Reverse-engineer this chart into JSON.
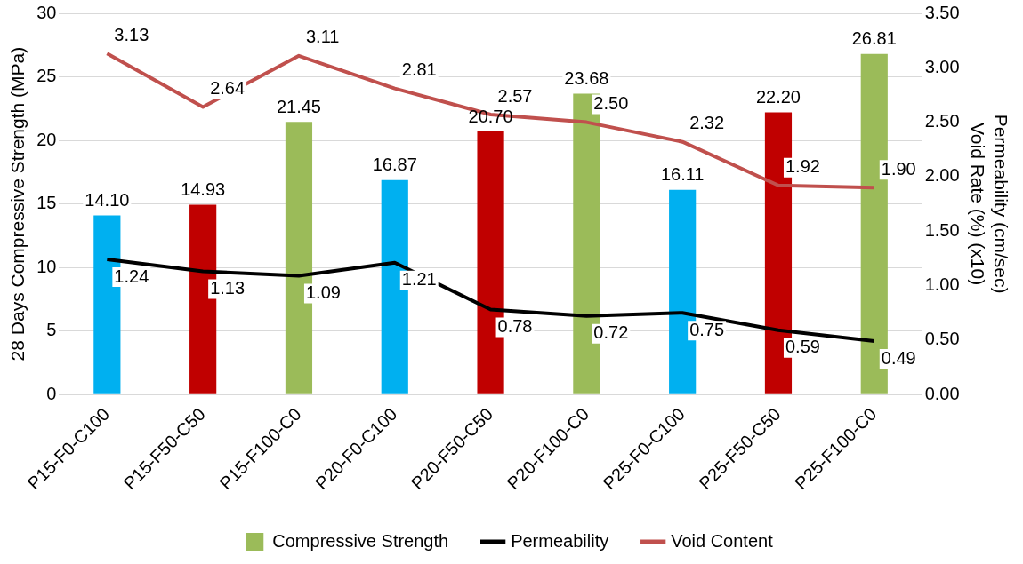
{
  "chart_data": {
    "type": "bar",
    "categories": [
      "P15-F0-C100",
      "P15-F50-C50",
      "P15-F100-C0",
      "P20-F0-C100",
      "P20-F50-C50",
      "P20-F100-C0",
      "P25-F0-C100",
      "P25-F50-C50",
      "P25-F100-C0"
    ],
    "ylabel": "28 Days Compressive Strength (MPa)",
    "y2label": "Permeability (cm/sec)\nVoid Rate (%) (x10)",
    "ylim": [
      0,
      30
    ],
    "yticks": [
      0,
      5,
      10,
      15,
      20,
      25,
      30
    ],
    "y2lim": [
      0,
      3.5
    ],
    "y2ticks": [
      {
        "value": 0,
        "label": "0.00"
      },
      {
        "value": 0.5,
        "label": "0.50"
      },
      {
        "value": 1,
        "label": "1.00"
      },
      {
        "value": 1.5,
        "label": "1.50"
      },
      {
        "value": 2,
        "label": "2.00"
      },
      {
        "value": 2.5,
        "label": "2.50"
      },
      {
        "value": 3,
        "label": "3.00"
      },
      {
        "value": 3.5,
        "label": "3.50"
      }
    ],
    "grid": "y",
    "legend": "bottom",
    "series": [
      {
        "name": "Compressive Strength",
        "color": "#9bbb59",
        "colors": [
          "#00b0f0",
          "#c00000",
          "#9bbb59",
          "#00b0f0",
          "#c00000",
          "#9bbb59",
          "#00b0f0",
          "#c00000",
          "#9bbb59"
        ],
        "values": [
          14.1,
          14.93,
          21.45,
          16.87,
          20.7,
          23.68,
          16.11,
          22.2,
          26.81
        ],
        "value_labels": [
          "14.10",
          "14.93",
          "21.45",
          "16.87",
          "20.70",
          "23.68",
          "16.11",
          "22.20",
          "26.81"
        ]
      },
      {
        "name": "Permeability",
        "type": "line",
        "axis": "y2",
        "color": "#000000",
        "values": [
          1.24,
          1.13,
          1.09,
          1.21,
          0.78,
          0.72,
          0.75,
          0.59,
          0.49
        ],
        "value_labels": [
          "1.24",
          "1.13",
          "1.09",
          "1.21",
          "0.78",
          "0.72",
          "0.75",
          "0.59",
          "0.49"
        ]
      },
      {
        "name": "Void Content",
        "type": "line",
        "axis": "y2",
        "color": "#c0504d",
        "values": [
          3.13,
          2.64,
          3.11,
          2.81,
          2.57,
          2.5,
          2.32,
          1.92,
          1.9
        ],
        "value_labels": [
          "3.13",
          "2.64",
          "3.11",
          "2.81",
          "2.57",
          "2.50",
          "2.32",
          "1.92",
          "1.90"
        ]
      }
    ]
  }
}
